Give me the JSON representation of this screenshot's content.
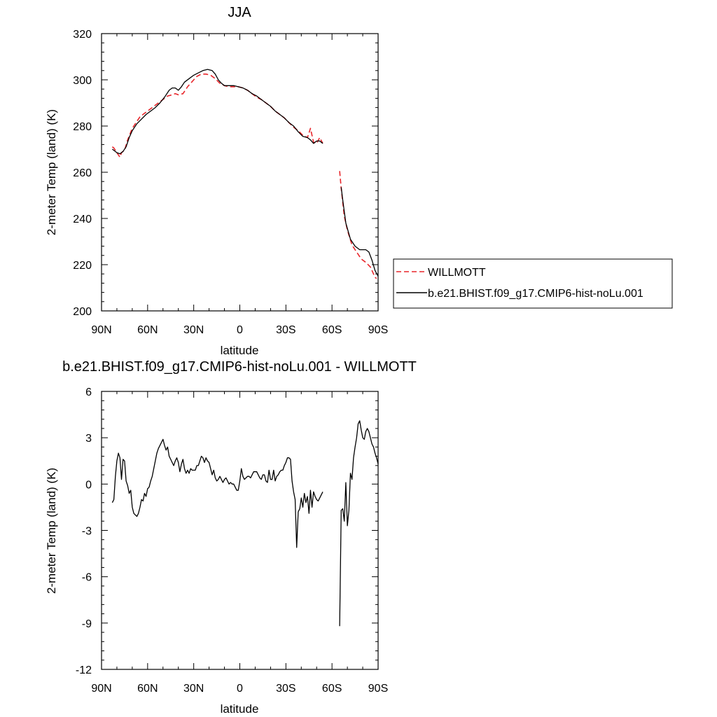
{
  "chart_data": [
    {
      "type": "line",
      "title": "JJA",
      "xlabel": "latitude",
      "ylabel": "2-meter Temp (land) (K)",
      "xlim": [
        90,
        -90
      ],
      "ylim": [
        200,
        320
      ],
      "x_ticks": [
        {
          "value": 90,
          "label": "90N"
        },
        {
          "value": 60,
          "label": "60N"
        },
        {
          "value": 30,
          "label": "30N"
        },
        {
          "value": 0,
          "label": "0"
        },
        {
          "value": -30,
          "label": "30S"
        },
        {
          "value": -60,
          "label": "60S"
        },
        {
          "value": -90,
          "label": "90S"
        }
      ],
      "y_ticks": [
        200,
        220,
        240,
        260,
        280,
        300,
        320
      ],
      "legend": {
        "position": "right",
        "entries": [
          "WILLMOTT",
          "b.e21.BHIST.f09_g17.CMIP6-hist-noLu.001"
        ]
      },
      "series": [
        {
          "name": "WILLMOTT",
          "color": "#e8262b",
          "dash": "dashed",
          "segments": [
            {
              "x": [
                83,
                82,
                80,
                78,
                77,
                75,
                73,
                70,
                67,
                65,
                62,
                60,
                57,
                54,
                50,
                47,
                44,
                42,
                40,
                37,
                34,
                32,
                30,
                28,
                25,
                22,
                19,
                16,
                13,
                10,
                7,
                4,
                1,
                -2,
                -5,
                -8,
                -11,
                -14,
                -17,
                -20,
                -23,
                -26,
                -29,
                -32,
                -35,
                -38,
                -41,
                -44,
                -46,
                -47,
                -48,
                -50,
                -52,
                -54
              ],
              "y": [
                271,
                270.5,
                268.5,
                266.5,
                268.5,
                269.5,
                274,
                279,
                282,
                284,
                285.5,
                286.5,
                288,
                289.5,
                291.5,
                293,
                293.5,
                294,
                293.5,
                294,
                297,
                298.5,
                300,
                301.5,
                302.5,
                302.5,
                302,
                300.5,
                298.5,
                297.5,
                297,
                297,
                297,
                296.5,
                295.5,
                294,
                292.5,
                291.5,
                290,
                288.5,
                286.5,
                285,
                283.5,
                281.5,
                279.5,
                278,
                276,
                275,
                279,
                276,
                273,
                272.5,
                275,
                272.5
              ]
            },
            {
              "x": [
                -65,
                -66,
                -68,
                -70,
                -73,
                -76,
                -79,
                -82,
                -85,
                -88,
                -89
              ],
              "y": [
                260.5,
                253,
                241,
                235,
                228.5,
                225.5,
                222.5,
                221,
                219,
                214.5,
                214
              ]
            }
          ]
        },
        {
          "name": "b.e21.BHIST.f09_g17.CMIP6-hist-noLu.001",
          "color": "#000000",
          "dash": "solid",
          "segments": [
            {
              "x": [
                83,
                80,
                78,
                76,
                74,
                72,
                70,
                67,
                64,
                61,
                58,
                55,
                52,
                49,
                46,
                44,
                42,
                40,
                38,
                36,
                33,
                30,
                27,
                24,
                21,
                18,
                16,
                14,
                12,
                10,
                7,
                4,
                1,
                -2,
                -5,
                -8,
                -11,
                -14,
                -17,
                -20,
                -23,
                -26,
                -29,
                -32,
                -35,
                -38,
                -41,
                -44,
                -46,
                -48,
                -50,
                -52,
                -54
              ],
              "y": [
                270,
                268.5,
                268,
                269,
                271,
                275,
                278,
                281,
                283,
                285,
                286.5,
                288,
                290,
                292.5,
                295.5,
                296.5,
                296.5,
                295.5,
                297,
                299,
                300.5,
                302,
                303,
                304,
                304.5,
                304,
                302.5,
                300,
                298.5,
                297.5,
                297.5,
                297.5,
                297,
                296.5,
                295.5,
                294,
                293,
                291.5,
                290,
                288.5,
                286.5,
                285,
                283.5,
                281.5,
                280,
                277.5,
                275.5,
                275,
                274,
                272.5,
                273.5,
                273.5,
                272.5
              ]
            },
            {
              "x": [
                -66,
                -67,
                -69,
                -72,
                -75,
                -78,
                -80,
                -82,
                -84,
                -86,
                -88,
                -90
              ],
              "y": [
                253.5,
                248,
                238,
                231,
                228,
                226.5,
                226.5,
                226.5,
                225.5,
                222,
                217.5,
                215
              ]
            }
          ]
        }
      ]
    },
    {
      "type": "line",
      "title": "b.e21.BHIST.f09_g17.CMIP6-hist-noLu.001 - WILLMOTT",
      "xlabel": "latitude",
      "ylabel": "2-meter Temp (land) (K)",
      "xlim": [
        90,
        -90
      ],
      "ylim": [
        -12,
        6
      ],
      "x_ticks": [
        {
          "value": 90,
          "label": "90N"
        },
        {
          "value": 60,
          "label": "60N"
        },
        {
          "value": 30,
          "label": "30N"
        },
        {
          "value": 0,
          "label": "0"
        },
        {
          "value": -30,
          "label": "30S"
        },
        {
          "value": -60,
          "label": "60S"
        },
        {
          "value": -90,
          "label": "90S"
        }
      ],
      "y_ticks": [
        -12,
        -9,
        -6,
        -3,
        0,
        3,
        6
      ],
      "series": [
        {
          "color": "#000000",
          "dash": "solid",
          "segments": [
            {
              "x": [
                83,
                82,
                81,
                80,
                79,
                78,
                77,
                76,
                75,
                74,
                73,
                72,
                71,
                70,
                69,
                68,
                67,
                66,
                65,
                64,
                63,
                62,
                61,
                60,
                59,
                58,
                57,
                56,
                55,
                54,
                53,
                52,
                51,
                50,
                49,
                48,
                47,
                46,
                45,
                44,
                43,
                42,
                41,
                40,
                39,
                38,
                37,
                36,
                35,
                34,
                33,
                32,
                31,
                30,
                29,
                28,
                27,
                26,
                25,
                24,
                23,
                22,
                21,
                20,
                19,
                18,
                17,
                16,
                15,
                14,
                13,
                12,
                11,
                10,
                9,
                8,
                7,
                6,
                5,
                4,
                3,
                2,
                1,
                0,
                -1,
                -2,
                -3,
                -4,
                -5,
                -6,
                -7,
                -8,
                -9,
                -10,
                -11,
                -12,
                -13,
                -14,
                -15,
                -16,
                -17,
                -18,
                -19,
                -20,
                -21,
                -22,
                -23,
                -24,
                -25,
                -26,
                -27,
                -28,
                -29,
                -30,
                -31,
                -32,
                -33,
                -34,
                -35,
                -36,
                -37,
                -38,
                -39,
                -40,
                -41,
                -42,
                -43,
                -44,
                -45,
                -46,
                -47,
                -48,
                -49,
                -50,
                -51,
                -52,
                -53,
                -54
              ],
              "y": [
                -1.2,
                -1.0,
                0.5,
                1.5,
                2.0,
                1.7,
                0.3,
                1.6,
                1.5,
                0.2,
                -0.1,
                -0.6,
                -0.4,
                -1.5,
                -1.9,
                -2.0,
                -2.1,
                -1.9,
                -1.5,
                -1.0,
                -1.1,
                -0.6,
                -0.8,
                -0.3,
                -0.2,
                0.2,
                0.5,
                1.0,
                1.5,
                2.0,
                2.3,
                2.5,
                2.7,
                2.9,
                2.5,
                2.2,
                2.4,
                1.8,
                1.6,
                1.4,
                1.2,
                1.5,
                1.7,
                1.4,
                0.8,
                1.3,
                1.6,
                1.0,
                0.7,
                0.9,
                0.7,
                1.0,
                0.9,
                0.9,
                0.9,
                1.2,
                1.2,
                1.5,
                1.8,
                1.7,
                1.4,
                1.7,
                1.5,
                1.4,
                1.0,
                0.6,
                0.9,
                0.4,
                0.2,
                0.3,
                0.5,
                0.3,
                0.1,
                0.3,
                0.4,
                0.2,
                0.0,
                0.1,
                0.0,
                0.0,
                -0.2,
                -0.4,
                -0.4,
                0.2,
                1.0,
                0.5,
                0.3,
                0.4,
                0.5,
                0.5,
                0.4,
                0.6,
                0.8,
                0.8,
                0.8,
                0.6,
                0.4,
                0.3,
                0.6,
                0.6,
                0.2,
                0.1,
                0.9,
                0.3,
                0.3,
                0.9,
                0.2,
                0.5,
                0.6,
                0.8,
                0.9,
                0.9,
                1.2,
                1.4,
                1.7,
                1.7,
                1.6,
                0.2,
                -0.5,
                -1.0,
                -4.1,
                -1.8,
                -1.6,
                -0.9,
                -1.5,
                -0.6,
                -1.2,
                -0.8,
                -1.9,
                -0.4,
                -1.5,
                -0.5,
                -0.8,
                -1.0,
                -1.1,
                -0.9,
                -0.7,
                -0.5
              ],
              "note": "shape"
            },
            {
              "x": [
                -65,
                -66,
                -67,
                -68,
                -69,
                -70,
                -71,
                -72,
                -73,
                -74,
                -75,
                -76,
                -77,
                -78,
                -79,
                -80,
                -81,
                -82,
                -83,
                -84,
                -85,
                -86,
                -87,
                -88,
                -89,
                -90
              ],
              "y": [
                -9.2,
                -1.7,
                -1.6,
                -2.4,
                0.1,
                -2.7,
                -1.7,
                0.7,
                0.3,
                1.7,
                2.4,
                3.0,
                3.9,
                4.1,
                3.5,
                3.0,
                2.9,
                3.4,
                3.6,
                3.4,
                3.0,
                2.6,
                2.4,
                2.0,
                1.7,
                1.3
              ]
            }
          ]
        }
      ]
    }
  ]
}
